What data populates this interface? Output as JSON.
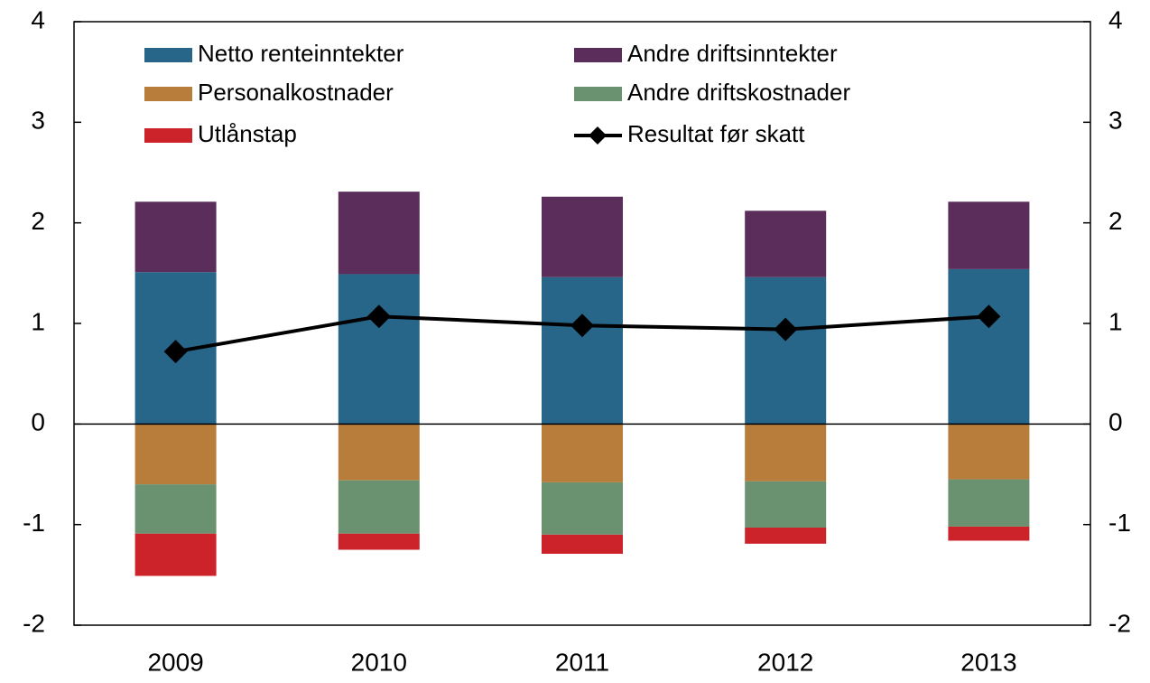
{
  "chart_data": {
    "type": "bar",
    "stacked": true,
    "categories": [
      "2009",
      "2010",
      "2011",
      "2012",
      "2013"
    ],
    "series": [
      {
        "name": "Netto renteinntekter",
        "color": "#276589",
        "values": [
          1.51,
          1.49,
          1.46,
          1.46,
          1.54
        ]
      },
      {
        "name": "Andre driftsinntekter",
        "color": "#5a2d5a",
        "values": [
          0.7,
          0.82,
          0.8,
          0.66,
          0.67
        ]
      },
      {
        "name": "Personalkostnader",
        "color": "#b87d3a",
        "values": [
          -0.6,
          -0.56,
          -0.58,
          -0.57,
          -0.55
        ]
      },
      {
        "name": "Andre driftskostnader",
        "color": "#6a9270",
        "values": [
          -0.49,
          -0.53,
          -0.52,
          -0.46,
          -0.47
        ]
      },
      {
        "name": "Utlånstap",
        "color": "#cc2229",
        "values": [
          -0.42,
          -0.16,
          -0.19,
          -0.16,
          -0.14
        ]
      },
      {
        "name": "Resultat før skatt",
        "color": "#000000",
        "type": "line",
        "values": [
          0.72,
          1.07,
          0.98,
          0.94,
          1.07
        ]
      }
    ],
    "ylim": [
      -2,
      4
    ],
    "yticks": [
      -2,
      -1,
      0,
      1,
      2,
      3,
      4
    ],
    "y2lim": [
      -2,
      4
    ],
    "y2ticks": [
      -2,
      -1,
      0,
      1,
      2,
      3,
      4
    ],
    "legend": "top"
  }
}
